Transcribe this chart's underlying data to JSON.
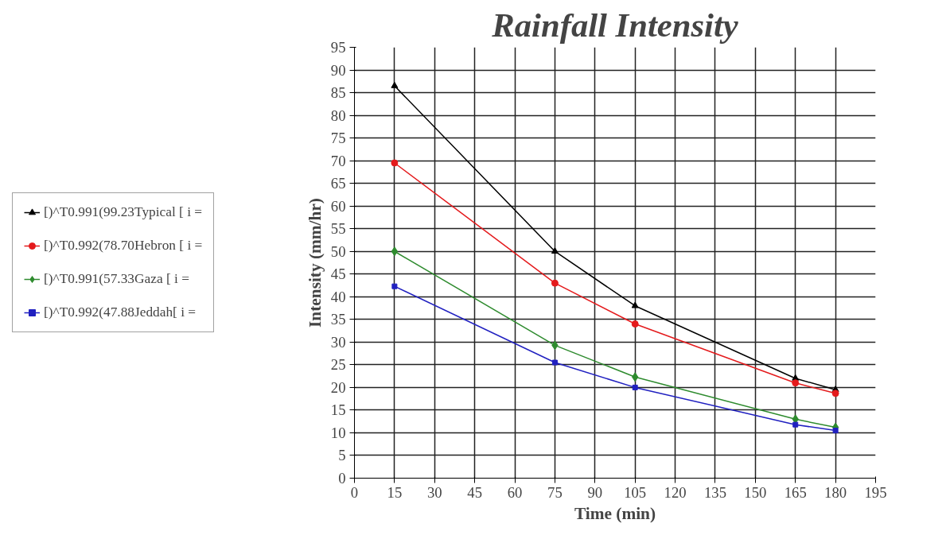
{
  "chart_data": {
    "type": "line",
    "title": "Rainfall Intensity",
    "xlabel": "Time (min)",
    "ylabel": "Intensity (mm/hr)",
    "x": [
      15,
      75,
      105,
      165,
      180
    ],
    "series": [
      {
        "name": "[)^T0.991(99.23Typical [ i =",
        "color": "#000000",
        "marker": "triangle",
        "values": [
          86.5,
          50,
          38,
          22,
          19.5
        ]
      },
      {
        "name": "[)^T0.992(78.70Hebron [ i =",
        "color": "#e41a1c",
        "marker": "circle",
        "values": [
          69.5,
          43,
          34,
          21,
          18.7
        ]
      },
      {
        "name": "[)^T0.991(57.33Gaza [ i =",
        "color": "#2e8b2e",
        "marker": "diamond",
        "values": [
          50,
          29.3,
          22.3,
          13,
          11.2
        ]
      },
      {
        "name": "[)^T0.992(47.88Jeddah[ i =",
        "color": "#2020c0",
        "marker": "square",
        "values": [
          42.3,
          25.5,
          20,
          11.8,
          10.5
        ]
      }
    ],
    "xlim": [
      0,
      195
    ],
    "xticks": [
      0,
      15,
      30,
      45,
      60,
      75,
      90,
      105,
      120,
      135,
      150,
      165,
      180,
      195
    ],
    "ylim": [
      0,
      95
    ],
    "yticks": [
      0,
      5,
      10,
      15,
      20,
      25,
      30,
      35,
      40,
      45,
      50,
      55,
      60,
      65,
      70,
      75,
      80,
      85,
      90,
      95
    ],
    "grid": true,
    "legend": "left",
    "line_style": "solid"
  }
}
